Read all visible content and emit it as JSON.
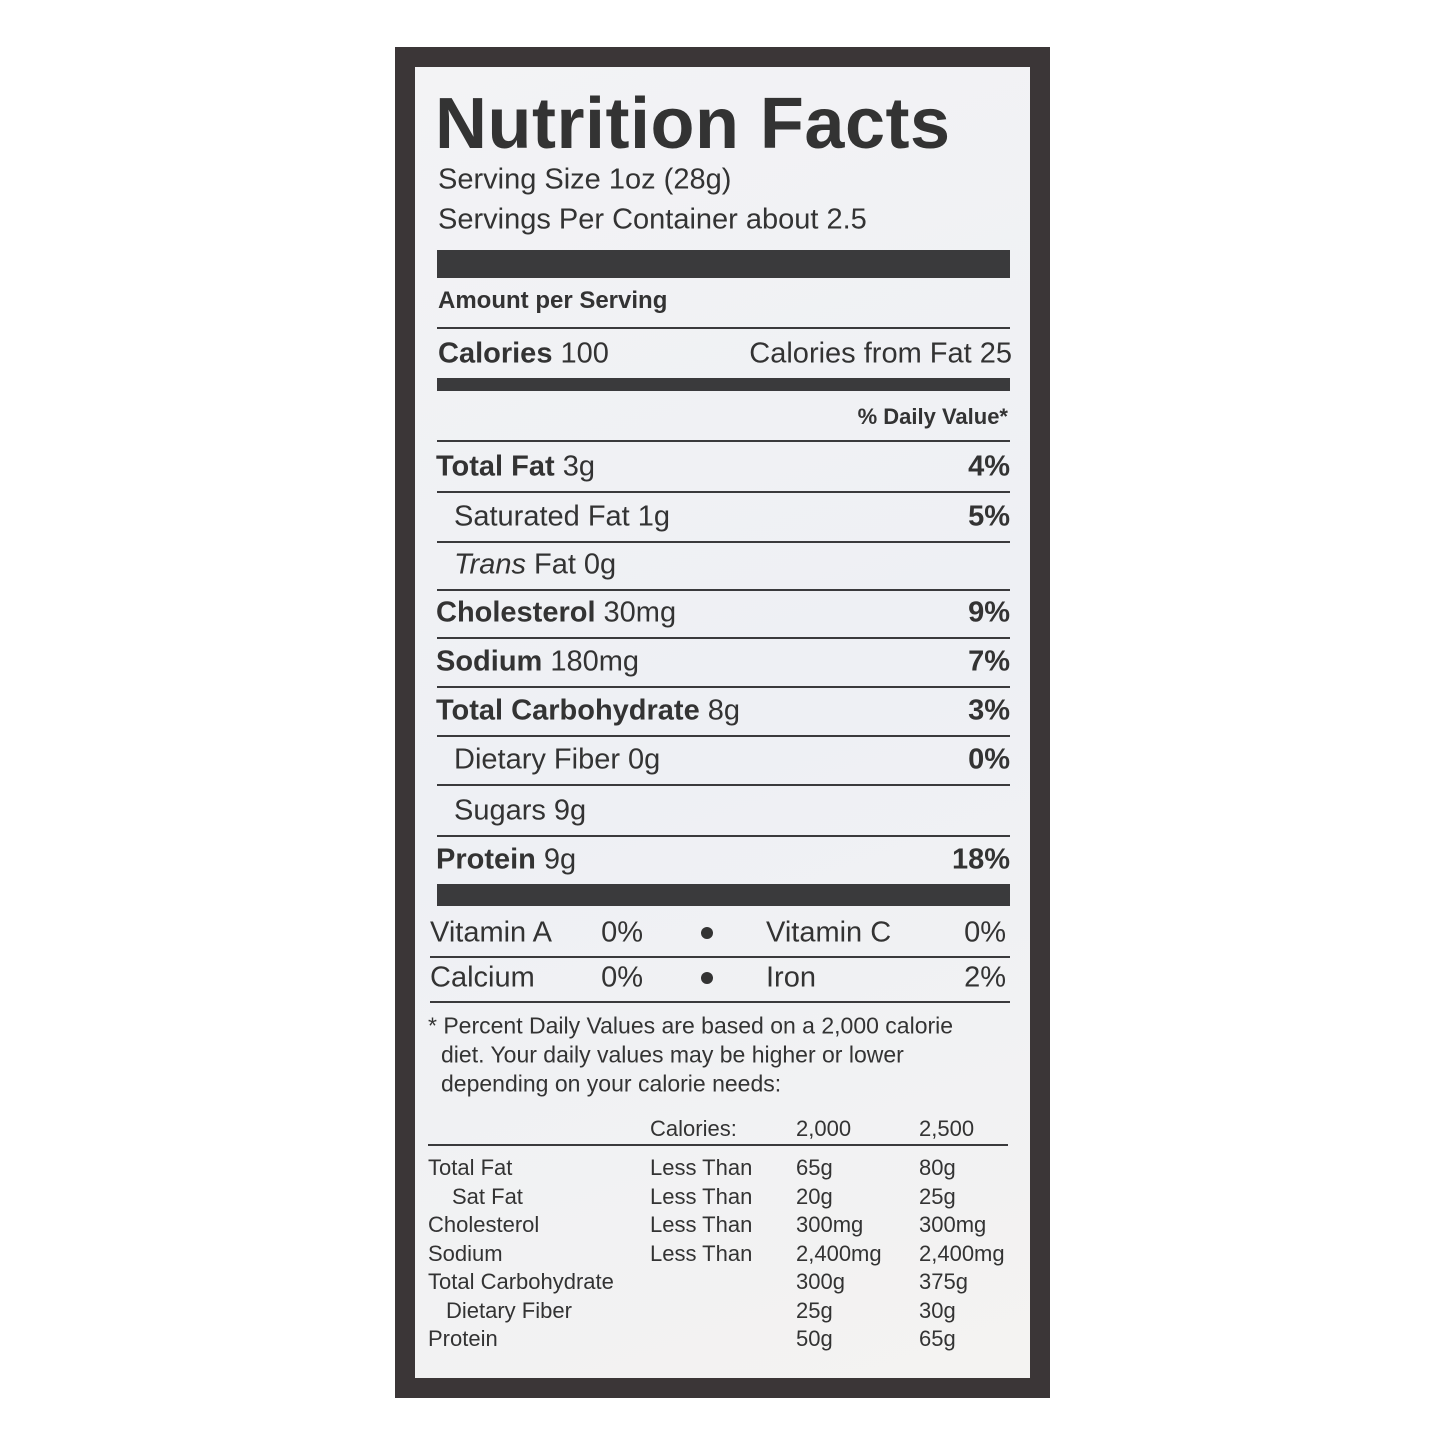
{
  "title": "Nutrition Facts",
  "serving_size": "Serving Size 1oz (28g)",
  "servings_per_container": "Servings Per Container about 2.5",
  "amount_per_serving": "Amount per Serving",
  "calories": {
    "label": "Calories",
    "value": "100",
    "from_fat": "Calories from Fat 25"
  },
  "daily_value_header": "% Daily Value*",
  "nutrients": [
    {
      "name": "Total Fat",
      "amount": "3g",
      "dv": "4%"
    },
    {
      "name": "Saturated Fat",
      "amount": "1g",
      "dv": "5%"
    },
    {
      "name_italic": "Trans",
      "name": "Fat",
      "amount": "0g"
    },
    {
      "name": "Cholesterol",
      "amount": "30mg",
      "dv": "9%"
    },
    {
      "name": "Sodium",
      "amount": "180mg",
      "dv": "7%"
    },
    {
      "name": "Total Carbohydrate",
      "amount": "8g",
      "dv": "3%"
    },
    {
      "name": "Dietary Fiber",
      "amount": "0g",
      "dv": "0%"
    },
    {
      "name": "Sugars",
      "amount": "9g"
    },
    {
      "name": "Protein",
      "amount": "9g",
      "dv": "18%"
    }
  ],
  "vitamins": [
    [
      {
        "name": "Vitamin A",
        "value": "0%"
      },
      {
        "name": "Vitamin C",
        "value": "0%"
      }
    ],
    [
      {
        "name": "Calcium",
        "value": "0%"
      },
      {
        "name": "Iron",
        "value": "2%"
      }
    ]
  ],
  "footnote": [
    "* Percent Daily Values are based on a 2,000 calorie",
    "diet. Your daily values may be higher or lower",
    "depending on your calorie needs:"
  ],
  "table": {
    "header": [
      "Calories:",
      "2,000",
      "2,500"
    ],
    "rows": [
      [
        "Total Fat",
        "Less Than",
        "65g",
        "80g"
      ],
      [
        "Sat Fat",
        "Less Than",
        "20g",
        "25g"
      ],
      [
        "Cholesterol",
        "Less Than",
        "300mg",
        "300mg"
      ],
      [
        "Sodium",
        "Less Than",
        "2,400mg",
        "2,400mg"
      ],
      [
        "Total Carbohydrate",
        null,
        "300g",
        "375g"
      ],
      [
        "Dietary Fiber",
        null,
        "25g",
        "30g"
      ],
      [
        "Protein",
        null,
        "50g",
        "65g"
      ]
    ]
  }
}
